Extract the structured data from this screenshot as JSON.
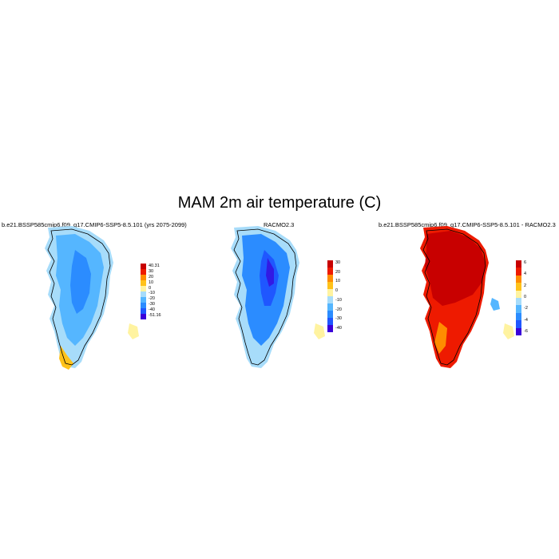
{
  "title": "MAM 2m air temperature (C)",
  "panels": [
    {
      "id": "model",
      "title": "b.e21.BSSP585cmip6.f09_g17.CMIP6-SSP5-8.5.101 (yrs 2075-2099)",
      "colorbar": {
        "colors": [
          "#3a00d9",
          "#1f57ff",
          "#2b8cff",
          "#55b6ff",
          "#a7dcfa",
          "#fff3a0",
          "#ffc21a",
          "#ff8c00",
          "#ee1a00",
          "#c80000"
        ],
        "labels": [
          "40.31",
          "30",
          "20",
          "10",
          "0",
          "-10",
          "-20",
          "-30",
          "-40",
          "-51.16"
        ]
      }
    },
    {
      "id": "obs",
      "title": "RACMO2.3",
      "colorbar": {
        "colors": [
          "#3a00d9",
          "#1f57ff",
          "#2b8cff",
          "#55b6ff",
          "#a7dcfa",
          "#fff3a0",
          "#ffc21a",
          "#ff8c00",
          "#ee1a00",
          "#c80000"
        ],
        "labels": [
          "30",
          "20",
          "10",
          "0",
          "-10",
          "-20",
          "-30",
          "-40"
        ]
      }
    },
    {
      "id": "diff",
      "title": "b.e21.BSSP585cmip6.f09_g17.CMIP6-SSP5-8.5.101 - RACMO2.3",
      "colorbar": {
        "colors": [
          "#3a00d9",
          "#1f57ff",
          "#2b8cff",
          "#55b6ff",
          "#a7dcfa",
          "#fff3a0",
          "#ffc21a",
          "#ff8c00",
          "#ee1a00",
          "#c80000"
        ],
        "labels": [
          "6",
          "4",
          "2",
          "0",
          "-2",
          "-4",
          "-6"
        ]
      }
    }
  ]
}
